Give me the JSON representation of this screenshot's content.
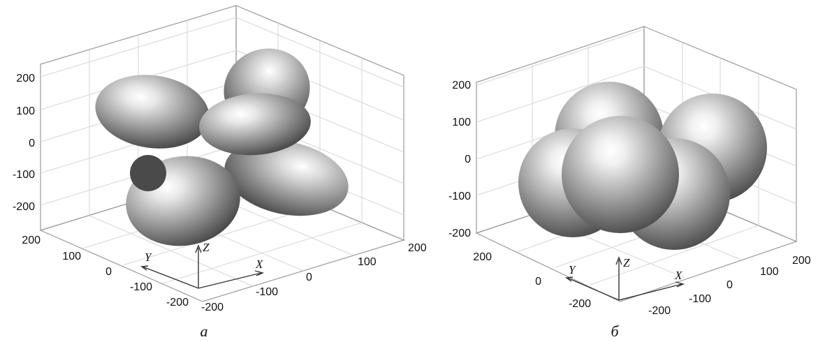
{
  "panels": [
    {
      "id": "a",
      "caption": "а",
      "z_ticks": [
        "200",
        "100",
        "0",
        "-100",
        "-200"
      ],
      "y_ticks": [
        "200",
        "100",
        "0",
        "-100",
        "-200"
      ],
      "x_ticks": [
        "-200",
        "-100",
        "0",
        "100",
        "200"
      ],
      "axis_labels": {
        "x": "X",
        "y": "Y",
        "z": "Z"
      }
    },
    {
      "id": "b",
      "caption": "б",
      "z_ticks": [
        "200",
        "100",
        "0",
        "-100",
        "-200"
      ],
      "y_ticks": [
        "200",
        "0",
        "-200"
      ],
      "x_ticks": [
        "-200",
        "-100",
        "0",
        "100",
        "200"
      ],
      "axis_labels": {
        "x": "X",
        "y": "Y",
        "z": "Z"
      }
    }
  ]
}
